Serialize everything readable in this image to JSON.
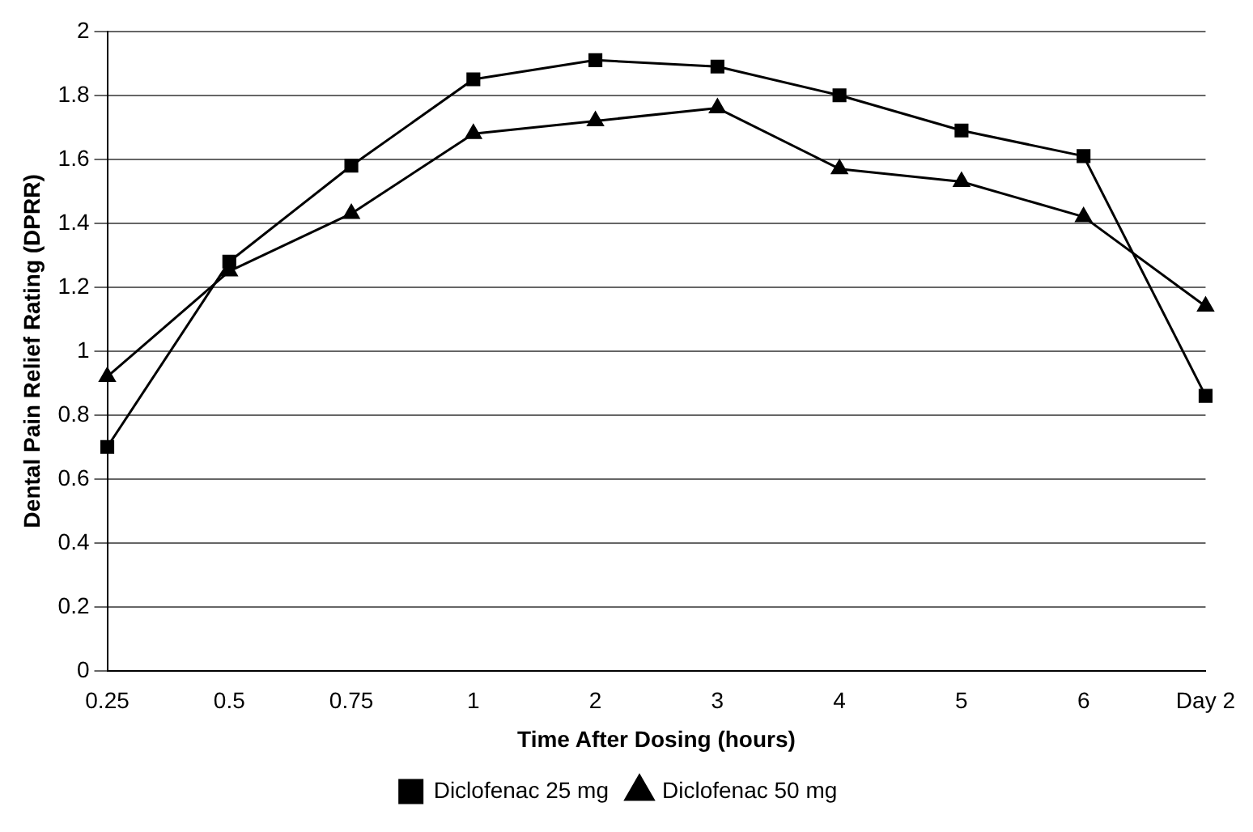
{
  "chart_data": {
    "type": "line",
    "xlabel": "Time After Dosing (hours)",
    "ylabel": "Dental Pain Relief Rating (DPRR)",
    "categories": [
      "0.25",
      "0.5",
      "0.75",
      "1",
      "2",
      "3",
      "4",
      "5",
      "6",
      "Day 2"
    ],
    "series": [
      {
        "name": "Diclofenac 25 mg",
        "color": "#000000",
        "marker": "square",
        "values": [
          0.7,
          1.28,
          1.58,
          1.85,
          1.91,
          1.89,
          1.8,
          1.69,
          1.61,
          0.86
        ]
      },
      {
        "name": "Diclofenac 50 mg",
        "color": "#000000",
        "marker": "triangle",
        "values": [
          0.92,
          1.25,
          1.43,
          1.68,
          1.72,
          1.76,
          1.57,
          1.53,
          1.42,
          1.14
        ]
      }
    ],
    "ylim": [
      0,
      2
    ],
    "yticks": [
      0,
      0.2,
      0.4,
      0.6,
      0.8,
      1,
      1.2,
      1.4,
      1.6,
      1.8,
      2
    ],
    "grid": "y",
    "legend": "bottom",
    "line_style": "solid"
  }
}
